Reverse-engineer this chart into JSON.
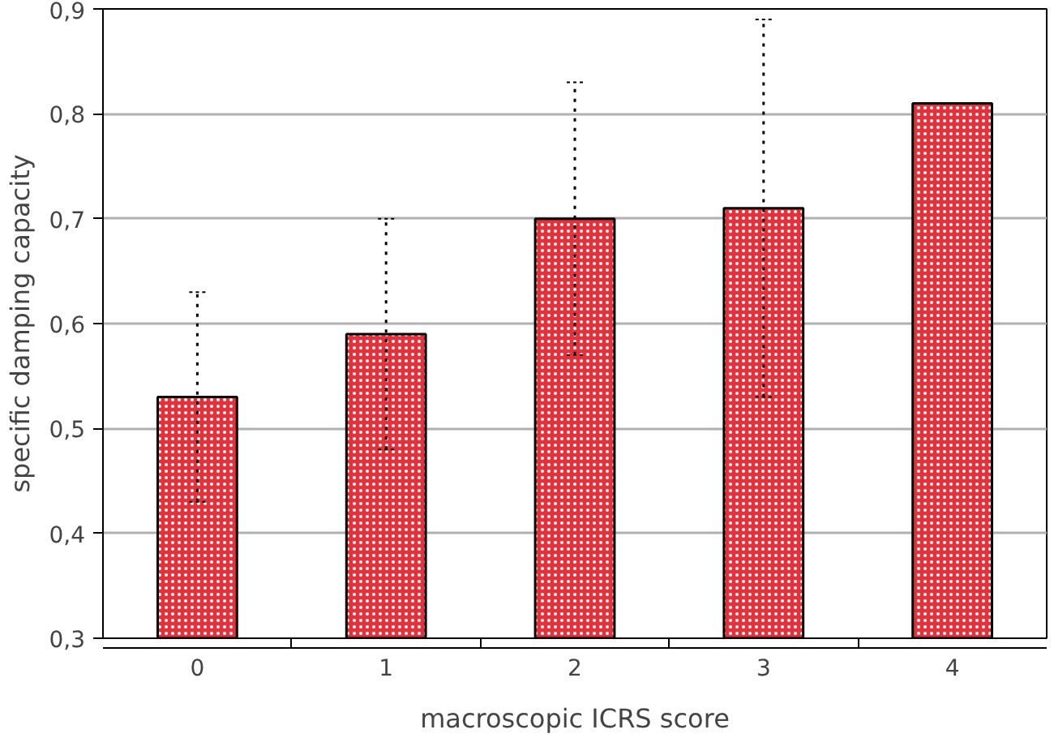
{
  "chart_data": {
    "type": "bar",
    "xlabel": "macroscopic ICRS score",
    "ylabel": "specific damping capacity",
    "categories": [
      "0",
      "1",
      "2",
      "3",
      "4"
    ],
    "values": [
      0.53,
      0.59,
      0.7,
      0.71,
      0.81
    ],
    "errors": [
      0.1,
      0.11,
      0.13,
      0.18,
      null
    ],
    "color": "#e8303a",
    "ylim": [
      0.3,
      0.9
    ],
    "yticks": [
      {
        "value": 0.3,
        "label": "0,3"
      },
      {
        "value": 0.4,
        "label": "0,4"
      },
      {
        "value": 0.5,
        "label": "0,5"
      },
      {
        "value": 0.6,
        "label": "0,6"
      },
      {
        "value": 0.7,
        "label": "0,7"
      },
      {
        "value": 0.8,
        "label": "0,8"
      },
      {
        "value": 0.9,
        "label": "0,9"
      }
    ],
    "grid": "y"
  }
}
